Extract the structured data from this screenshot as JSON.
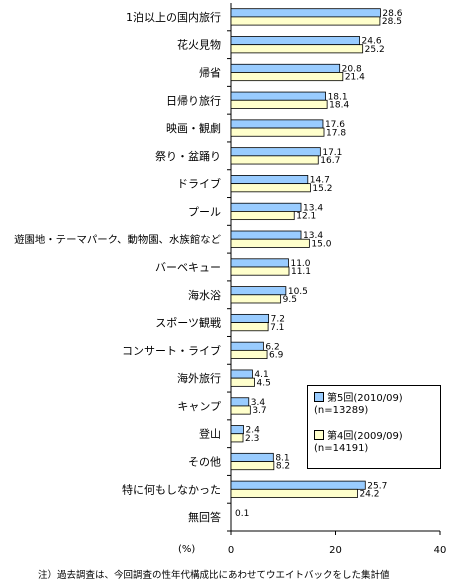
{
  "chart_data": {
    "type": "bar",
    "orientation": "horizontal",
    "categories": [
      "1泊以上の国内旅行",
      "花火見物",
      "帰省",
      "日帰り旅行",
      "映画・観劇",
      "祭り・盆踊り",
      "ドライブ",
      "プール",
      "遊園地・テーマパーク、動物園、水族館など",
      "バーベキュー",
      "海水浴",
      "スポーツ観戦",
      "コンサート・ライブ",
      "海外旅行",
      "キャンプ",
      "登山",
      "その他",
      "特に何もしなかった",
      "無回答"
    ],
    "series": [
      {
        "name": "第5回(2010/09)(n=13289)",
        "name_line1": "第5回(2010/09)",
        "name_line2": "(n=13289)",
        "color": "#99ccff",
        "values": [
          28.6,
          24.6,
          20.8,
          18.1,
          17.6,
          17.1,
          14.7,
          13.4,
          13.4,
          11.0,
          10.5,
          7.2,
          6.2,
          4.1,
          3.4,
          2.4,
          8.1,
          25.7,
          0.1
        ]
      },
      {
        "name": "第4回(2009/09)(n=14191)",
        "name_line1": "第4回(2009/09)",
        "name_line2": "(n=14191)",
        "color": "#ffffcc",
        "values": [
          28.5,
          25.2,
          21.4,
          18.4,
          17.8,
          16.7,
          15.2,
          12.1,
          15.0,
          11.1,
          9.5,
          7.1,
          6.9,
          4.5,
          3.7,
          2.3,
          8.2,
          24.2,
          null
        ]
      }
    ],
    "xlim": [
      0,
      40
    ],
    "xticks": [
      "0",
      "20",
      "40"
    ],
    "unit_label": "(%)",
    "grid": false,
    "legend_position": "bottom-right",
    "note": "注）過去調査は、今回調査の性年代構成比にあわせてウエイトバックをした集計値"
  }
}
